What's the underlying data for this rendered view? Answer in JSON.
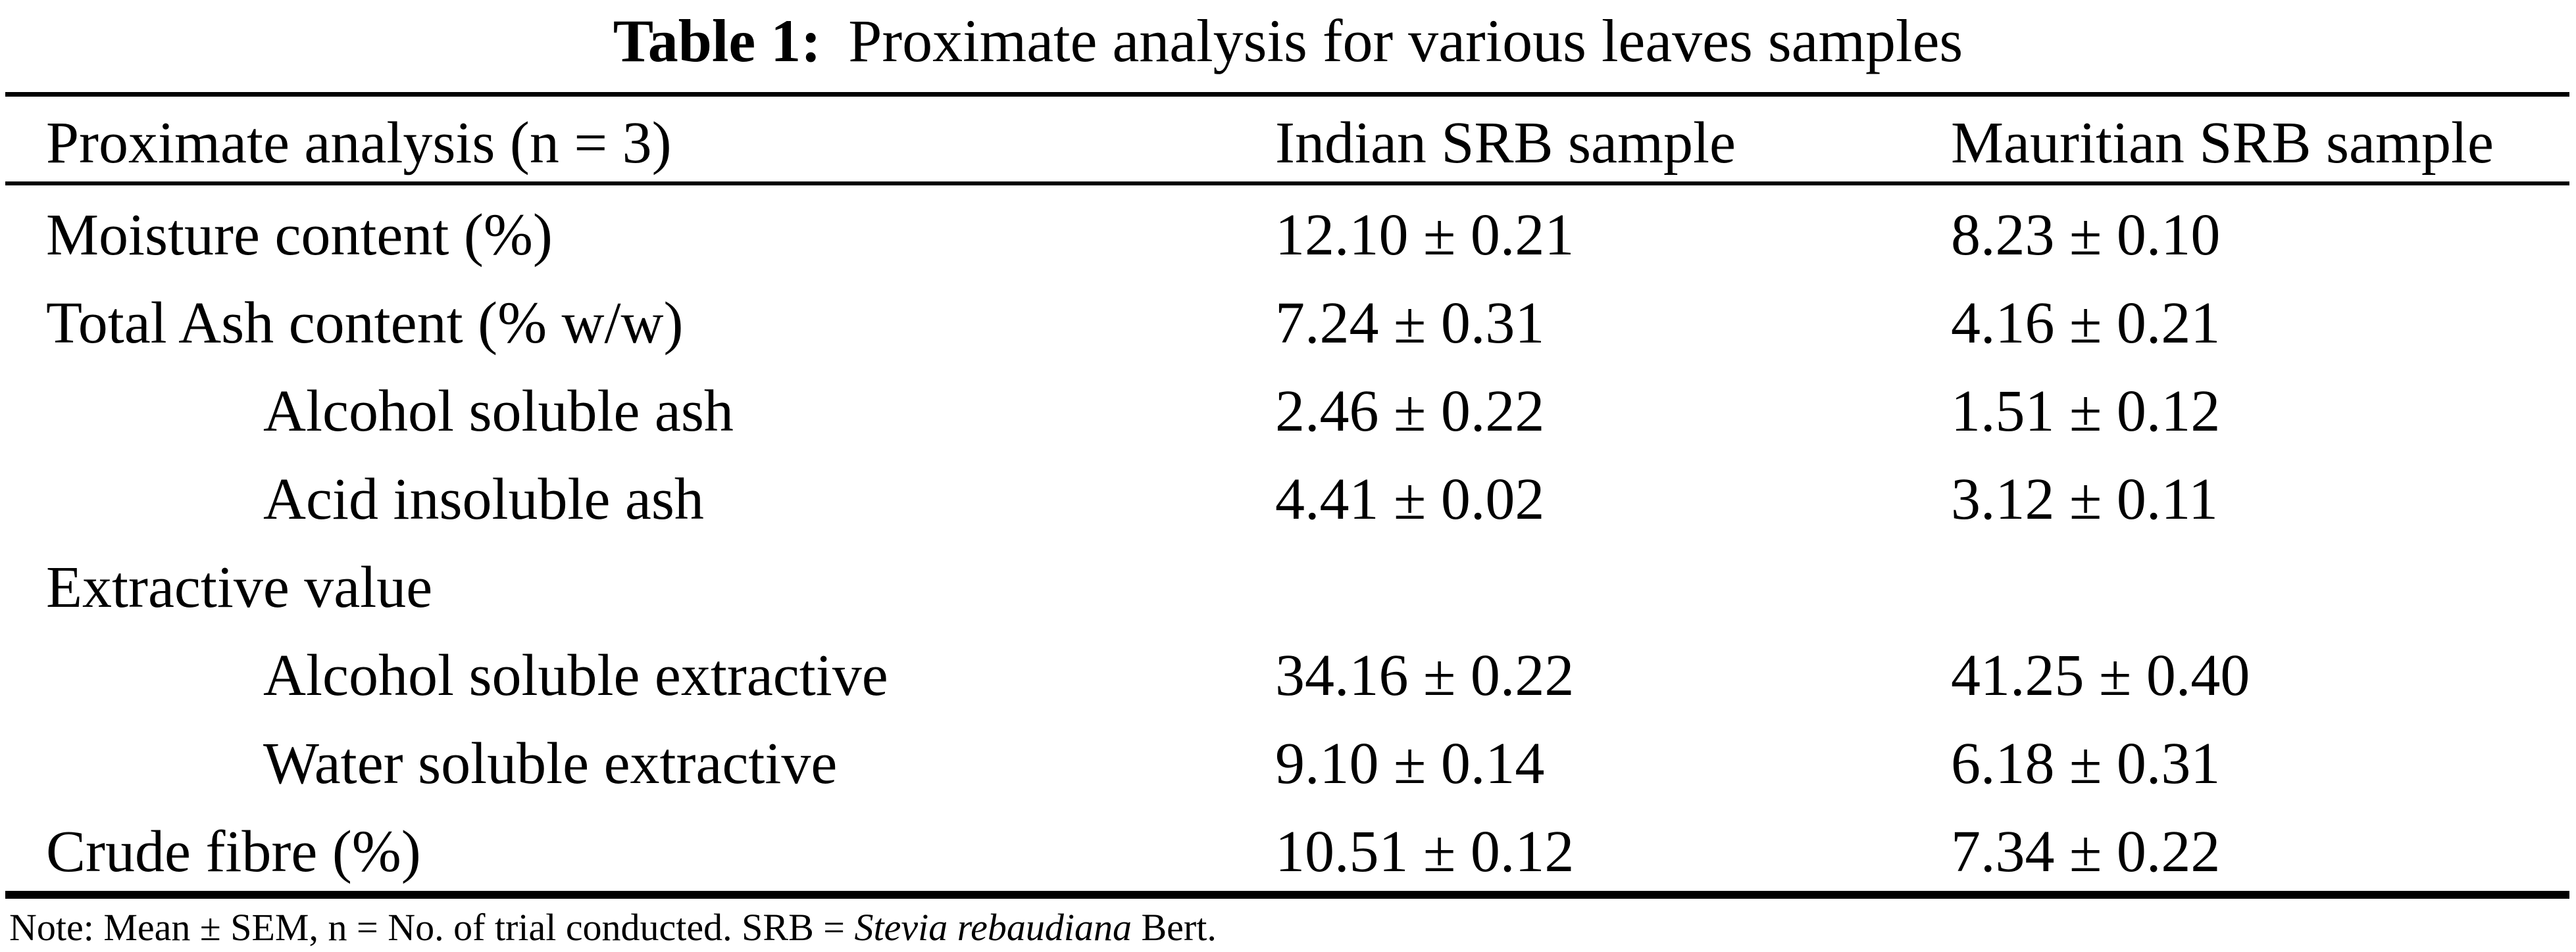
{
  "caption": {
    "label": "Table 1:",
    "text": "Proximate analysis for various leaves samples"
  },
  "table": {
    "columns": [
      "Proximate analysis (n = 3)",
      "Indian SRB sample",
      "Mauritian SRB sample"
    ],
    "rows": [
      {
        "parameter": "Moisture content (%)",
        "level": 0,
        "indian": "12.10 ± 0.21",
        "mauritian": "8.23 ± 0.10"
      },
      {
        "parameter": "Total Ash content (% w/w)",
        "level": 0,
        "indian": "7.24 ± 0.31",
        "mauritian": "4.16 ± 0.21"
      },
      {
        "parameter": "Alcohol soluble ash",
        "level": 1,
        "indian": "2.46 ± 0.22",
        "mauritian": "1.51 ± 0.12"
      },
      {
        "parameter": "Acid insoluble ash",
        "level": 1,
        "indian": "4.41 ± 0.02",
        "mauritian": "3.12 ± 0.11"
      },
      {
        "parameter": "Extractive value",
        "level": 0,
        "indian": "",
        "mauritian": ""
      },
      {
        "parameter": "Alcohol soluble extractive",
        "level": 1,
        "indian": "34.16 ± 0.22",
        "mauritian": "41.25 ± 0.40"
      },
      {
        "parameter": "Water soluble extractive",
        "level": 1,
        "indian": "9.10 ± 0.14",
        "mauritian": "6.18 ± 0.31"
      },
      {
        "parameter": "Crude fibre (%)",
        "level": 0,
        "indian": "10.51 ± 0.12",
        "mauritian": "7.34 ± 0.22"
      }
    ]
  },
  "note": {
    "prefix": "Note: Mean ± SEM, n = No. of trial conducted. SRB = ",
    "species": "Stevia rebaudiana",
    "suffix": " Bert."
  },
  "colors": {
    "text": "#000000",
    "background": "#ffffff",
    "rule": "#000000"
  }
}
